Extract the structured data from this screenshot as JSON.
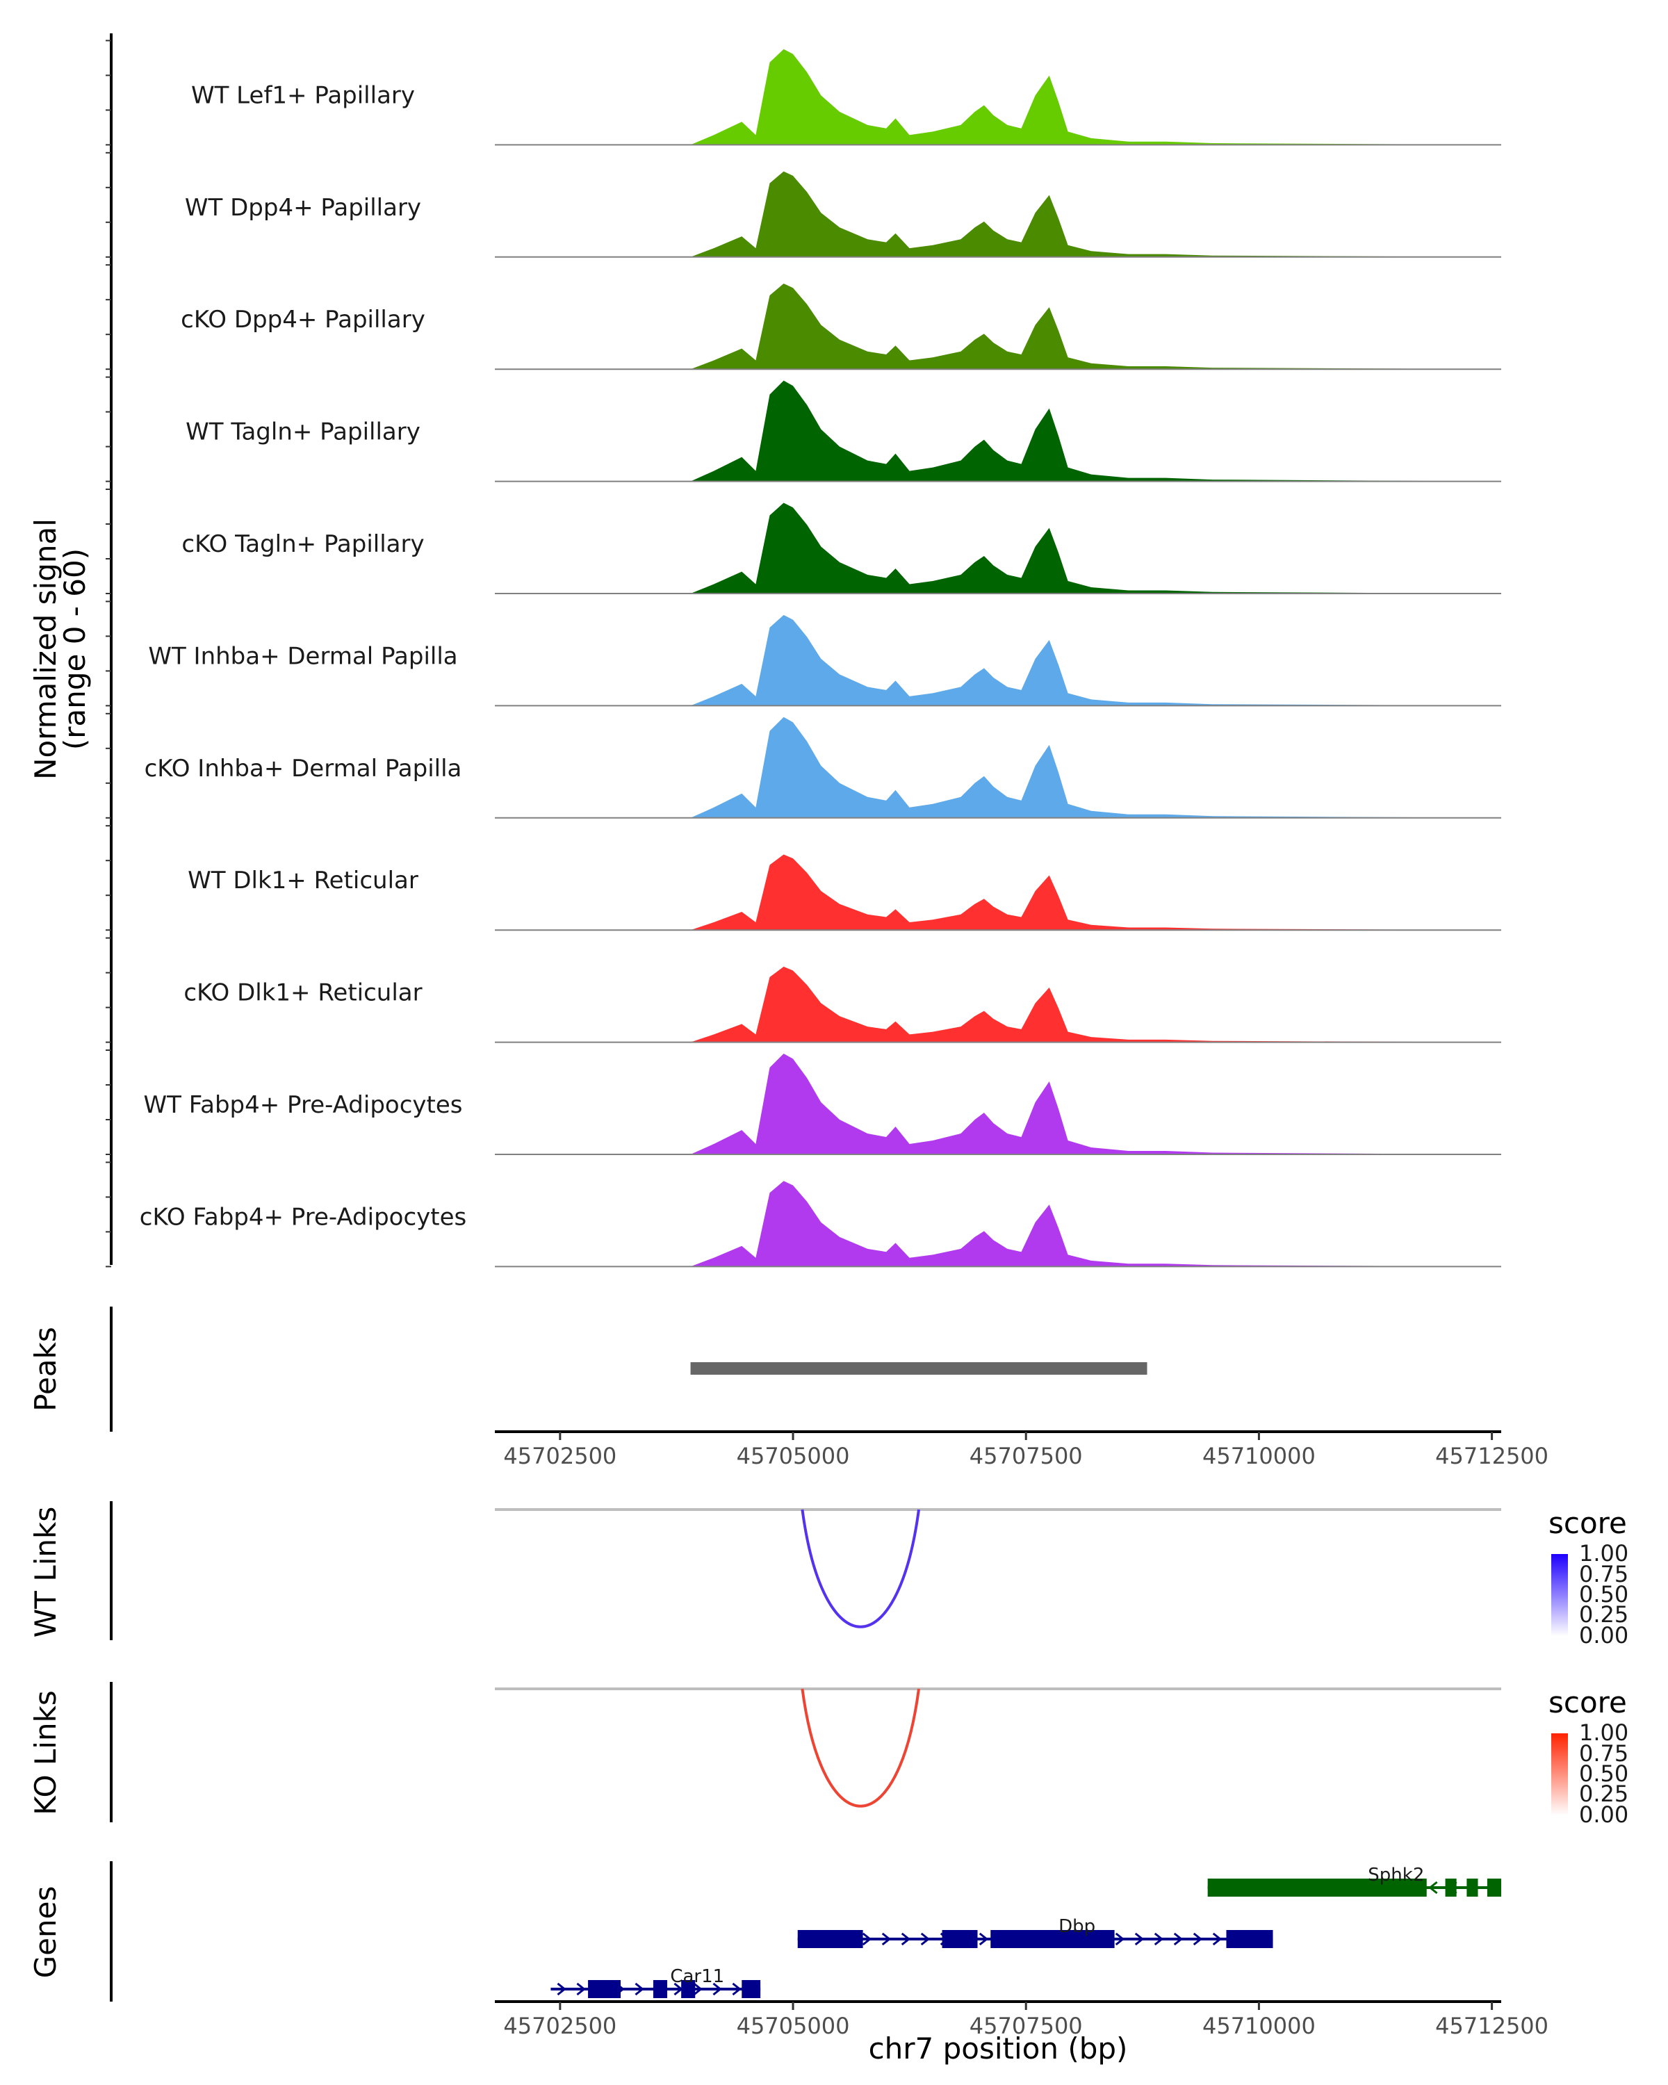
{
  "chart_data": {
    "type": "area",
    "title": "",
    "chromosome": "chr7",
    "xlim": [
      45701800,
      45712600
    ],
    "xlabel": "chr7 position (bp)",
    "x_ticks": [
      45702500,
      45705000,
      45707500,
      45710000,
      45712500
    ],
    "x_tick_labels": [
      "45702500",
      "45705000",
      "45707500",
      "45710000",
      "45712500"
    ],
    "ylabel_line1": "Normalized signal",
    "ylabel_line2": "(range 0 - 60)",
    "ylim": [
      0,
      60
    ],
    "coverage_template": [
      [
        45702300,
        0
      ],
      [
        45703900,
        0
      ],
      [
        45704150,
        6
      ],
      [
        45704300,
        10
      ],
      [
        45704450,
        14
      ],
      [
        45704600,
        6
      ],
      [
        45704750,
        50
      ],
      [
        45704900,
        58
      ],
      [
        45705000,
        55
      ],
      [
        45705150,
        44
      ],
      [
        45705300,
        30
      ],
      [
        45705500,
        20
      ],
      [
        45705800,
        12
      ],
      [
        45706000,
        10
      ],
      [
        45706100,
        16
      ],
      [
        45706250,
        6
      ],
      [
        45706500,
        8
      ],
      [
        45706800,
        12
      ],
      [
        45706950,
        20
      ],
      [
        45707050,
        24
      ],
      [
        45707150,
        18
      ],
      [
        45707300,
        12
      ],
      [
        45707450,
        10
      ],
      [
        45707600,
        30
      ],
      [
        45707750,
        42
      ],
      [
        45707850,
        26
      ],
      [
        45707950,
        8
      ],
      [
        45708200,
        4
      ],
      [
        45708600,
        2
      ],
      [
        45709000,
        2
      ],
      [
        45709500,
        1
      ],
      [
        45712600,
        0
      ]
    ],
    "series": [
      {
        "name": "WT Lef1+ Papillary",
        "color": "#66CC00",
        "scale": 0.95
      },
      {
        "name": "WT Dpp4+ Papillary",
        "color": "#4A8B00",
        "scale": 0.85
      },
      {
        "name": "cKO Dpp4+ Papillary",
        "color": "#4A8B00",
        "scale": 0.85
      },
      {
        "name": "WT Tagln+ Papillary",
        "color": "#006400",
        "scale": 1.0
      },
      {
        "name": "cKO Tagln+ Papillary",
        "color": "#006400",
        "scale": 0.9
      },
      {
        "name": "WT Inhba+ Dermal Papilla",
        "color": "#5DA9E9",
        "scale": 0.9
      },
      {
        "name": "cKO Inhba+ Dermal Papilla",
        "color": "#5DA9E9",
        "scale": 1.0
      },
      {
        "name": "WT Dlk1+ Reticular",
        "color": "#FF3030",
        "scale": 0.75
      },
      {
        "name": "cKO Dlk1+ Reticular",
        "color": "#FF3030",
        "scale": 0.75
      },
      {
        "name": "WT Fabp4+ Pre-Adipocytes",
        "color": "#B23AEE",
        "scale": 1.0
      },
      {
        "name": "cKO Fabp4+ Pre-Adipocytes",
        "color": "#B23AEE",
        "scale": 0.85
      }
    ],
    "peaks": {
      "label": "Peaks",
      "regions": [
        [
          45703900,
          45708800
        ]
      ],
      "color": "#666666"
    },
    "links": [
      {
        "label": "WT Links",
        "start": 45705100,
        "end": 45706350,
        "score": 0.85,
        "color": "#5533EE"
      },
      {
        "label": "KO Links",
        "start": 45705100,
        "end": 45706350,
        "score": 0.85,
        "color": "#EE4433"
      }
    ],
    "legends": [
      {
        "title": "score",
        "ticks": [
          "1.00",
          "0.75",
          "0.50",
          "0.25",
          "0.00"
        ],
        "color_high": "#1E00FF",
        "color_low": "#FFFFFF"
      },
      {
        "title": "score",
        "ticks": [
          "1.00",
          "0.75",
          "0.50",
          "0.25",
          "0.00"
        ],
        "color_high": "#FF2200",
        "color_low": "#FFFFFF"
      }
    ],
    "genes_track_label": "Genes",
    "genes": [
      {
        "name": "Sphk2",
        "strand": "-",
        "color": "#006400",
        "start": 45709450,
        "end": 45712600,
        "exons": [
          [
            45709450,
            45711800
          ],
          [
            45712000,
            45712120
          ],
          [
            45712230,
            45712350
          ],
          [
            45712450,
            45712600
          ]
        ]
      },
      {
        "name": "Dbp",
        "strand": "+",
        "color": "#00008B",
        "start": 45705050,
        "end": 45710150,
        "exons": [
          [
            45705050,
            45705750
          ],
          [
            45706600,
            45706980
          ],
          [
            45707120,
            45708450
          ],
          [
            45709650,
            45710150
          ]
        ]
      },
      {
        "name": "Car11",
        "strand": "+",
        "color": "#00008B",
        "start": 45702400,
        "end": 45704650,
        "exons": [
          [
            45702800,
            45703150
          ],
          [
            45703500,
            45703650
          ],
          [
            45703800,
            45703950
          ],
          [
            45704450,
            45704650
          ]
        ]
      }
    ]
  }
}
